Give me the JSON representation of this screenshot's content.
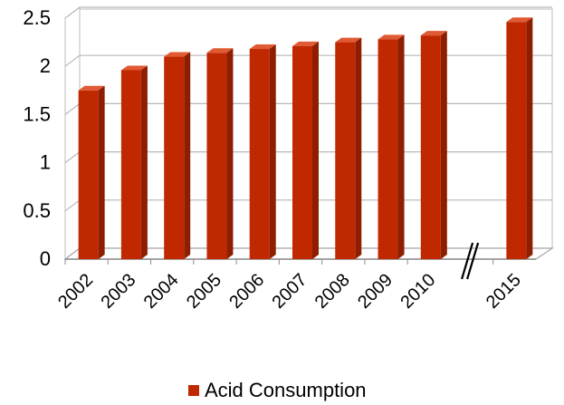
{
  "chart_data": {
    "type": "bar",
    "categories": [
      "2002",
      "2003",
      "2004",
      "2005",
      "2006",
      "2007",
      "2008",
      "2009",
      "2010",
      "2015"
    ],
    "series": [
      {
        "name": "Acid Consumption",
        "values": [
          1.75,
          1.96,
          2.1,
          2.14,
          2.18,
          2.21,
          2.25,
          2.28,
          2.32,
          2.46
        ],
        "color": "#C02800"
      }
    ],
    "title": "",
    "xlabel": "",
    "ylabel": "",
    "ylim": [
      0,
      2.5
    ],
    "yticks": [
      "0",
      "0.5",
      "1",
      "1.5",
      "2",
      "2.5"
    ],
    "grid": true,
    "axis_break_between": [
      "2010",
      "2015"
    ],
    "legend_position": "bottom"
  }
}
